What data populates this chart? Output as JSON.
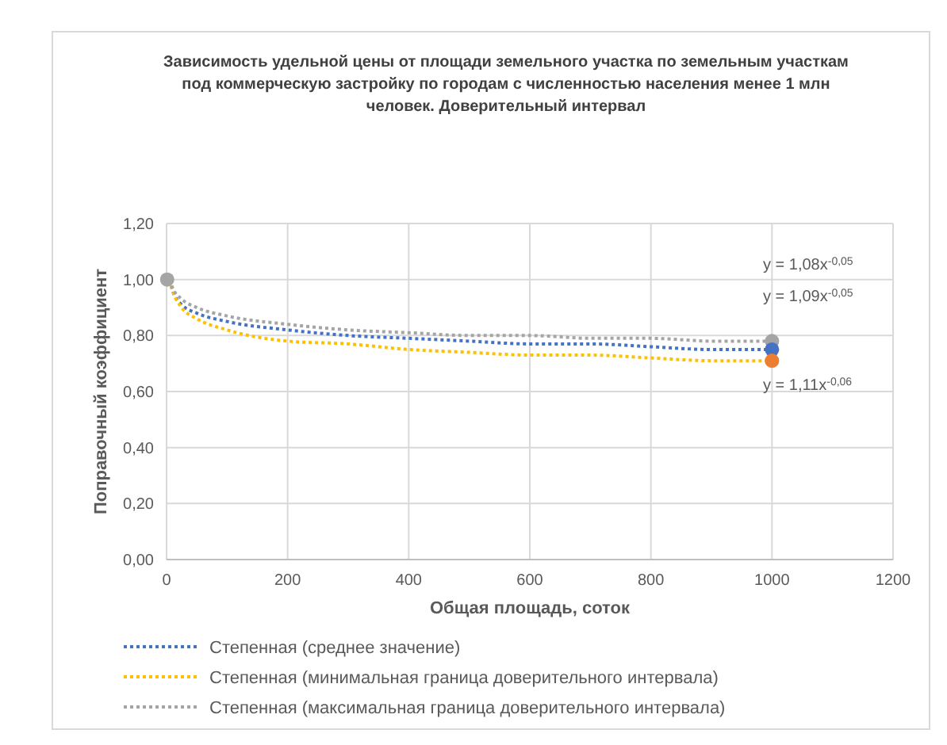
{
  "chart_data": {
    "type": "line",
    "title": "Зависимость удельной цены от площади земельного участка по земельным участкам под коммерческую застройку по городам с численностью населения менее 1 млн человек. Доверительный интервал",
    "xlabel": "Общая площадь, соток",
    "ylabel": "Поправочный коэффициент",
    "xlim": [
      0,
      1200
    ],
    "xticks": [
      0,
      200,
      400,
      600,
      800,
      1000,
      1200
    ],
    "ylim": [
      0,
      1.2
    ],
    "yticks": [
      {
        "value": 0,
        "label": "0,00"
      },
      {
        "value": 0.2,
        "label": "0,20"
      },
      {
        "value": 0.4,
        "label": "0,40"
      },
      {
        "value": 0.6,
        "label": "0,60"
      },
      {
        "value": 0.8,
        "label": "0,80"
      },
      {
        "value": 1,
        "label": "1,00"
      },
      {
        "value": 1.2,
        "label": "1,20"
      }
    ],
    "grid": true,
    "legend": "bottom",
    "line_style": "dotted",
    "series": [
      {
        "name": "Степенная (среднее значение)",
        "color": "#4472c4",
        "x": [
          5,
          10,
          25,
          50,
          100,
          200,
          300,
          400,
          500,
          600,
          700,
          800,
          900,
          1000
        ],
        "values": [
          1.0,
          0.96,
          0.91,
          0.88,
          0.85,
          0.82,
          0.8,
          0.79,
          0.78,
          0.77,
          0.77,
          0.76,
          0.75,
          0.75
        ]
      },
      {
        "name": "Степенная (минимальная граница доверительного интервала)",
        "color": "#ffc000",
        "x": [
          5,
          10,
          25,
          50,
          100,
          200,
          300,
          400,
          500,
          600,
          700,
          800,
          900,
          1000
        ],
        "values": [
          1.0,
          0.96,
          0.9,
          0.86,
          0.82,
          0.78,
          0.77,
          0.75,
          0.74,
          0.73,
          0.73,
          0.72,
          0.71,
          0.71
        ]
      },
      {
        "name": "Степенная (максимальная граница доверительного интервала)",
        "color": "#a5a5a5",
        "x": [
          5,
          10,
          25,
          50,
          100,
          200,
          300,
          400,
          500,
          600,
          700,
          800,
          900,
          1000
        ],
        "values": [
          1.0,
          0.97,
          0.93,
          0.9,
          0.87,
          0.84,
          0.82,
          0.81,
          0.8,
          0.8,
          0.79,
          0.79,
          0.78,
          0.78
        ]
      },
      {
        "type": "scatter",
        "color": "#a5a5a5",
        "marker": "circle",
        "x": [
          1,
          1000
        ],
        "values": [
          1.0,
          0.78
        ]
      },
      {
        "type": "scatter",
        "color": "#4472c4",
        "marker": "circle",
        "x": [
          1000
        ],
        "values": [
          0.75
        ]
      },
      {
        "type": "scatter",
        "color": "#ed7d31",
        "marker": "circle",
        "x": [
          1000
        ],
        "values": [
          0.71
        ]
      }
    ],
    "annotations": [
      "y = 1,08x$^{-0,05}$",
      "y = 1,09x$^{-0,05}$",
      "y = 1,11x$^{-0,06}$"
    ]
  }
}
